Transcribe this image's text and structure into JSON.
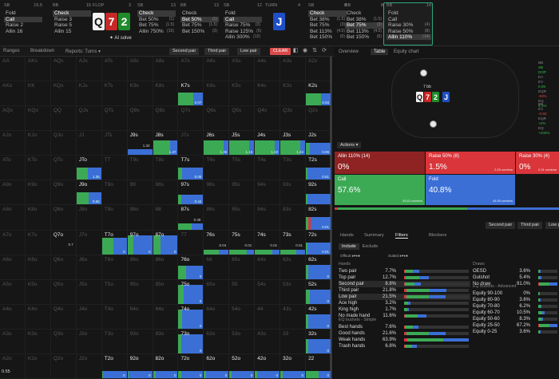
{
  "top_bar": {
    "columns": [
      {
        "pos": "SB",
        "stack": "15.5",
        "options": [
          {
            "label": "Fold",
            "n": "",
            "sel": false
          },
          {
            "label": "Call",
            "n": "",
            "sel": true
          },
          {
            "label": "Raise 2",
            "n": "",
            "sel": false
          },
          {
            "label": "Allin 16",
            "n": "",
            "sel": false
          }
        ]
      },
      {
        "pos": "BB",
        "stack": "15",
        "options": [
          {
            "label": "Check",
            "n": "",
            "sel": true
          },
          {
            "label": "Raise 3",
            "n": "",
            "sel": false
          },
          {
            "label": "Raise 5",
            "n": "",
            "sel": false
          },
          {
            "label": "Allin 15",
            "n": "",
            "sel": false
          }
        ]
      },
      {
        "pos": "SB",
        "stack": "13",
        "options": [
          {
            "label": "Check",
            "n": "",
            "sel": true
          },
          {
            "label": "Bet 50%",
            "n": "(1)",
            "sel": false
          },
          {
            "label": "Bet 75%",
            "n": "(1.5)",
            "sel": false
          },
          {
            "label": "Allin 750%",
            "n": "(15)",
            "sel": false
          }
        ]
      },
      {
        "pos": "BB",
        "stack": "13",
        "options": [
          {
            "label": "Check",
            "n": "",
            "sel": false
          },
          {
            "label": "Bet 50%",
            "n": "(1)",
            "sel": true
          },
          {
            "label": "Bet 75%",
            "n": "(1.5)",
            "sel": false
          },
          {
            "label": "Bet 150%",
            "n": "(3)",
            "sel": false
          }
        ]
      },
      {
        "pos": "SB",
        "stack": "12",
        "options": [
          {
            "label": "Fold",
            "n": "",
            "sel": false
          },
          {
            "label": "Call",
            "n": "",
            "sel": true
          },
          {
            "label": "Raise 75%",
            "n": "(3)",
            "sel": false
          },
          {
            "label": "Raise 125%",
            "n": "(5)",
            "sel": false
          },
          {
            "label": "Allin 300%",
            "n": "(12)",
            "sel": false
          }
        ]
      },
      {
        "pos": "SB",
        "stack": "8",
        "options": [
          {
            "label": "Check",
            "n": "",
            "sel": true
          },
          {
            "label": "Bet 38%",
            "n": "(1.5)",
            "sel": false
          },
          {
            "label": "Bet 75%",
            "n": "(3)",
            "sel": false
          },
          {
            "label": "Bet 113%",
            "n": "(4.5)",
            "sel": false
          },
          {
            "label": "Bet 150%",
            "n": "(6)",
            "sel": false
          }
        ]
      },
      {
        "pos": "BB",
        "stack": "8",
        "options": [
          {
            "label": "Check",
            "n": "",
            "sel": false
          },
          {
            "label": "Bet 38%",
            "n": "(1.5)",
            "sel": false
          },
          {
            "label": "Bet 75%",
            "n": "(3)",
            "sel": true
          },
          {
            "label": "Bet 113%",
            "n": "(4.5)",
            "sel": false
          },
          {
            "label": "Bet 150%",
            "n": "(6)",
            "sel": false
          }
        ]
      },
      {
        "pos": "BB",
        "stack": "14",
        "options": [
          {
            "label": "Fold",
            "n": "",
            "sel": false
          },
          {
            "label": "Call",
            "n": "",
            "sel": false
          },
          {
            "label": "Raise 30%",
            "n": "(4)",
            "sel": false
          },
          {
            "label": "Raise 50%",
            "n": "(8)",
            "sel": false
          },
          {
            "label": "Allin 110%",
            "n": "(14)",
            "sel": true
          }
        ]
      }
    ],
    "flop_label": "FLOP",
    "flop_num": "3",
    "turn_label": "TURN",
    "turn_num": "4",
    "ai_solve": "AI solve",
    "flop_cards": [
      "Q",
      "7",
      "2"
    ],
    "turn_card": "J"
  },
  "toolbar": {
    "tabs": [
      "Ranges",
      "Breakdown",
      "Reports: Turns ▾"
    ],
    "chips": [
      "Second pair",
      "Third pair",
      "Low pair"
    ],
    "clear": "CLEAR"
  },
  "right_tabs": [
    "Overview",
    "Table",
    "Equity chart"
  ],
  "table_view": {
    "pot": "7 bb",
    "sb_stack": "BB",
    "bb_label": "SB",
    "stats_top": [
      [
        "BB",
        "SB",
        "DOP"
      ],
      [
        "EV",
        ""
      ],
      [
        "EV",
        "0.09"
      ],
      [
        "EQR",
        "-53%"
      ],
      [
        "EQ",
        "4.1%"
      ]
    ],
    "stats_bot": [
      [
        "BB",
        ""
      ],
      [
        "EV",
        "-0.83"
      ],
      [
        "EQR",
        "+2%"
      ],
      [
        "EQ",
        "+102%"
      ]
    ]
  },
  "actions": {
    "dropdown": "Actions ▾",
    "boxes": [
      {
        "title": "Allin 110% (14)",
        "pct": "0%",
        "ev": "",
        "c": "#8f2323"
      },
      {
        "title": "Raise 50% (8)",
        "pct": "1.5%",
        "ev": "2.25 combos",
        "c": "#d9353a"
      },
      {
        "title": "Raise 30% (4)",
        "pct": "0%",
        "ev": "0.31 combos",
        "c": "#d9353a"
      },
      {
        "title": "Call",
        "pct": "57.6%",
        "ev": "34.63 combos",
        "c": "#3caa55"
      },
      {
        "title": "Fold",
        "pct": "40.8%",
        "ev": "44.55 combos",
        "c": "#3b6fd6"
      }
    ]
  },
  "filters": {
    "tabs": [
      "Hands",
      "Summary",
      "Filters",
      "Blockers"
    ],
    "active": "Filters",
    "chips": [
      "Second pair",
      "Third pair",
      "Low pa"
    ],
    "include": "Include",
    "exclude": "Exclude",
    "suited_label": "Suited",
    "offsuit_label": "Offsuit",
    "hands_title": "Hands",
    "draws_title": "Draws",
    "eq_simple_title": "EQ buckets - Simple",
    "eq_adv_title": "EQ buckets - Advanced",
    "hands": [
      [
        "Two pair",
        "7.7%"
      ],
      [
        "Top pair",
        "12.7%"
      ],
      [
        "Second pair",
        "8.8%"
      ],
      [
        "Third pair",
        "21.8%"
      ],
      [
        "Low pair",
        "21.5%"
      ],
      [
        "Ace high",
        "3.2%"
      ],
      [
        "King high",
        "1.7%"
      ],
      [
        "No made hand",
        "11.6%"
      ]
    ],
    "draws": [
      [
        "OESD",
        "3.6%"
      ],
      [
        "Gutshot",
        "5.4%"
      ],
      [
        "No draw",
        "91.0%"
      ]
    ],
    "eq_simple": [
      [
        "Best hands",
        "7.6%"
      ],
      [
        "Good hands",
        "21.6%"
      ],
      [
        "Weak hands",
        "63.9%"
      ],
      [
        "Trash hands",
        "6.8%"
      ]
    ],
    "eq_adv": [
      [
        "Equity 90-100",
        "0%"
      ],
      [
        "Equity 80-90",
        "3.6%"
      ],
      [
        "Equity 70-80",
        "6.2%"
      ],
      [
        "Equity 60-70",
        "10.5%"
      ],
      [
        "Equity 50-60",
        "8.3%"
      ],
      [
        "Equity 25-50",
        "67.2%"
      ],
      [
        "Equity 0-25",
        "3.6%"
      ]
    ]
  },
  "grid": {
    "ranks": [
      "A",
      "K",
      "Q",
      "J",
      "T",
      "9",
      "8",
      "7",
      "6",
      "5",
      "4",
      "3",
      "2"
    ],
    "active": {
      "K7s": [
        0.6,
        0,
        0.4,
        "0.07"
      ],
      "K2s": [
        0.6,
        0.05,
        0.35,
        "0.03"
      ],
      "J9s": [
        0,
        0,
        1,
        "1.32"
      ],
      "J8s": [
        0.7,
        0,
        0.3,
        "1.37"
      ],
      "J6s": [
        0.8,
        0,
        0.2,
        "1.35"
      ],
      "J5s": [
        0.8,
        0,
        0.2,
        "1.16"
      ],
      "J4s": [
        0.8,
        0,
        0.2,
        "1.22"
      ],
      "J3s": [
        0.8,
        0,
        0.2,
        "1.34"
      ],
      "J2s": [
        0.15,
        0,
        0.85,
        "0.09"
      ],
      "JTo": [
        0.45,
        0,
        0.55,
        "1.35"
      ],
      "T7s": [
        0.15,
        0,
        0.85,
        "0.05"
      ],
      "T2s": [
        0.05,
        0,
        0.95,
        "0.51"
      ],
      "J9o": [
        0.5,
        0,
        0.5,
        "0.55"
      ],
      "97s": [
        0.1,
        0,
        0.9,
        "0.44"
      ],
      "92s": [
        0.05,
        0,
        0.95,
        ""
      ],
      "87s": [
        0.55,
        0,
        0.45,
        "0.38"
      ],
      "82s": [
        0.1,
        0.08,
        0.82,
        "0.01"
      ],
      "Q7o": [
        0,
        0,
        0,
        "0.7"
      ],
      "T7o": [
        0.45,
        0,
        0.55,
        "0"
      ],
      "97o": [
        0.25,
        0,
        0.75,
        "0"
      ],
      "87o": [
        0.3,
        0,
        0.7,
        "0"
      ],
      "76s": [
        0.6,
        0,
        0.4,
        "0.04"
      ],
      "75s": [
        0.7,
        0,
        0.3,
        "0.01"
      ],
      "74s": [
        0.7,
        0,
        0.3,
        "0.01"
      ],
      "73s": [
        0.65,
        0,
        0.35,
        "0.01"
      ],
      "72s": [
        0.05,
        0,
        0.95,
        "0.01"
      ],
      "76o": [
        0.3,
        0,
        0.7,
        "0"
      ],
      "62s": [
        0.1,
        0,
        0.9,
        "0"
      ],
      "75o": [
        0.2,
        0,
        0.8,
        "0"
      ],
      "52s": [
        0.15,
        0,
        0.85,
        "0"
      ],
      "74o": [
        0.15,
        0,
        0.85,
        "0"
      ],
      "42s": [
        0.1,
        0,
        0.9,
        "0"
      ],
      "73o": [
        0.1,
        0,
        0.9,
        "0"
      ],
      "32s": [
        0.1,
        0,
        0.9,
        "0"
      ],
      "T2o": [
        0.05,
        0,
        0.95,
        "0"
      ],
      "92o": [
        0.05,
        0,
        0.95,
        "0"
      ],
      "82o": [
        0.1,
        0,
        0.9,
        "0"
      ],
      "72o": [
        0.1,
        0,
        0.9,
        "0"
      ],
      "62o": [
        0.1,
        0,
        0.9,
        "0"
      ],
      "52o": [
        0.1,
        0,
        0.9,
        "0"
      ],
      "42o": [
        0.1,
        0,
        0.9,
        "0"
      ],
      "32o": [
        0.1,
        0,
        0.9,
        "0"
      ],
      "22": [
        0.5,
        0,
        0.5,
        "0"
      ]
    },
    "fills": {
      "K7s": 0.55,
      "K2s": 0.5,
      "J9s": 0.25,
      "J8s": 0.6,
      "J6s": 0.6,
      "J5s": 0.6,
      "J4s": 0.6,
      "J3s": 0.6,
      "J2s": 0.5,
      "JTo": 0.5,
      "T7s": 0.5,
      "T2s": 0.5,
      "J9o": 0.5,
      "97s": 0.4,
      "92s": 0.45,
      "87s": 0.25,
      "82s": 0.5,
      "Q7o": 0.25,
      "T7o": 0.7,
      "97o": 0.8,
      "87o": 0.8,
      "76s": 0.2,
      "75s": 0.2,
      "74s": 0.2,
      "73s": 0.2,
      "72s": 0.5,
      "76o": 0.55,
      "62s": 0.6,
      "75o": 0.8,
      "52s": 0.6,
      "74o": 0.8,
      "42s": 0.6,
      "73o": 0.8,
      "32s": 0.6,
      "T2o": 0.3,
      "92o": 0.3,
      "82o": 0.3,
      "72o": 0.3,
      "62o": 0.3,
      "52o": 0.3,
      "42o": 0.3,
      "32o": 0.3,
      "22": 0.3
    },
    "bottom_value": "0.55"
  },
  "colors": {
    "check": "#3caa55",
    "raise": "#d9353a",
    "fold": "#3b6fd6",
    "accent": "#2fa77a"
  }
}
